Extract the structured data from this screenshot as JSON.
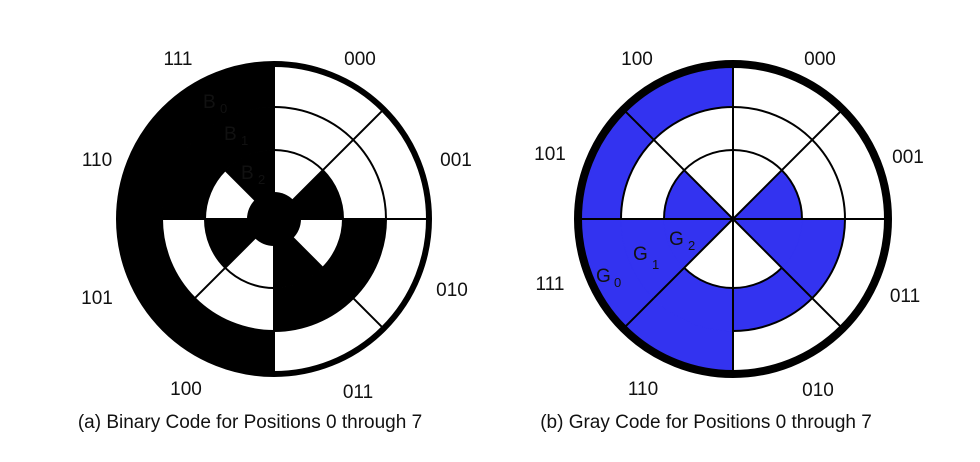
{
  "colors": {
    "binary_fill": "#000000",
    "gray_fill": "#3333f0",
    "background": "#ffffff",
    "stroke": "#000000"
  },
  "binary": {
    "caption": "(a) Binary Code for Positions 0 through 7",
    "position_labels": [
      "000",
      "001",
      "010",
      "011",
      "100",
      "101",
      "110",
      "111"
    ],
    "ring_labels": [
      {
        "letter": "B",
        "sub": "0"
      },
      {
        "letter": "B",
        "sub": "1"
      },
      {
        "letter": "B",
        "sub": "2"
      }
    ]
  },
  "gray": {
    "caption": "(b) Gray Code for Positions 0 through 7",
    "position_labels": [
      "000",
      "001",
      "011",
      "010",
      "110",
      "111",
      "101",
      "100"
    ],
    "ring_labels": [
      {
        "letter": "G",
        "sub": "0"
      },
      {
        "letter": "G",
        "sub": "1"
      },
      {
        "letter": "G",
        "sub": "2"
      }
    ]
  }
}
